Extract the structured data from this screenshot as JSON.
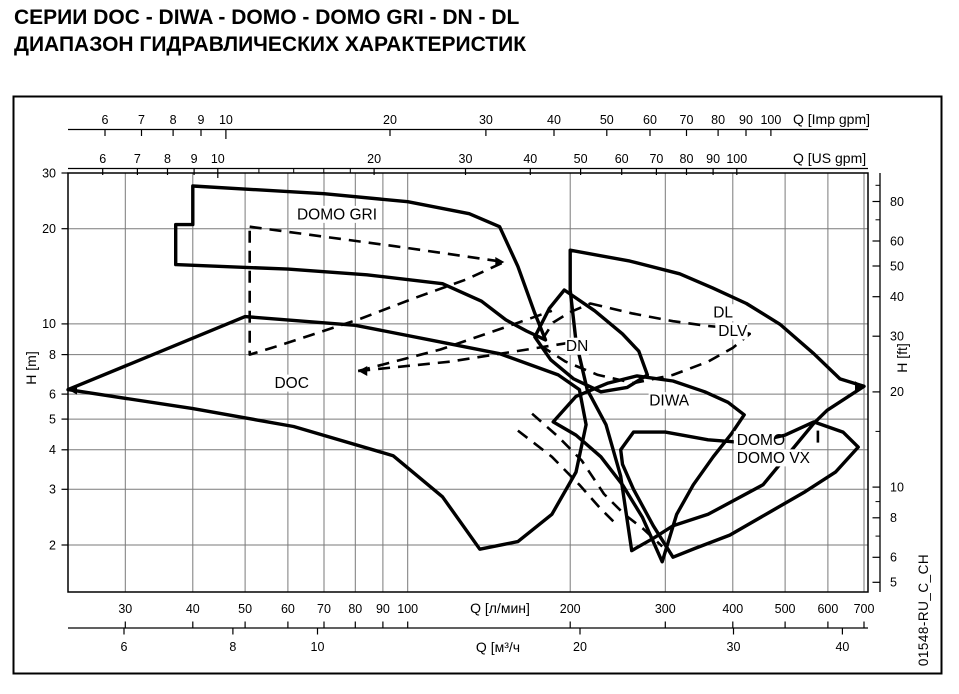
{
  "page": {
    "background": "#ffffff",
    "doc_code": "01548-RU_C_CH"
  },
  "title": {
    "line1": "СЕРИИ DOC - DIWA - DOMO - DOMO GRI - DN - DL",
    "line2": "ДИАПАЗОН ГИДРАВЛИЧЕСКИХ ХАРАКТЕРИСТИК"
  },
  "chart_data": {
    "type": "line",
    "description": "Log-log hydraulic range envelopes (flow Q vs head H) for pump series DOC, DIWA, DOMO, DOMO GRI, DN, DL",
    "grid": true,
    "x_range_lmin": [
      23.4,
      712
    ],
    "y_range_m": [
      1.42,
      30
    ],
    "x_axes": {
      "imp_gpm": {
        "label": "Q [Imp gpm]",
        "ticks": [
          6,
          7,
          8,
          9,
          10,
          20,
          30,
          40,
          50,
          60,
          70,
          80,
          90,
          100
        ]
      },
      "us_gpm": {
        "label": "Q [US gpm]",
        "ticks": [
          6,
          7,
          8,
          9,
          10,
          20,
          30,
          40,
          50,
          60,
          70,
          80,
          90,
          100
        ],
        "minor_ticks": [
          12,
          14,
          16,
          18
        ]
      },
      "l_min": {
        "label": "Q [л/мин]",
        "ticks": [
          30,
          40,
          50,
          60,
          70,
          80,
          90,
          100,
          200,
          300,
          400,
          500,
          600,
          700
        ]
      },
      "m3_h": {
        "label": "Q [м³/ч",
        "ticks": [
          6,
          8,
          10,
          20,
          30,
          40
        ]
      }
    },
    "y_axes": {
      "m": {
        "label": "H [m]",
        "ticks": [
          30,
          20,
          10,
          8,
          6,
          5,
          4,
          3,
          2
        ]
      },
      "ft": {
        "label": "H [ft]",
        "ticks": [
          80,
          60,
          50,
          40,
          30,
          20,
          10,
          8,
          6,
          5
        ],
        "minor_ticks": [
          90,
          70,
          15,
          9,
          7
        ]
      }
    },
    "series": [
      {
        "name": "DOC",
        "style": "solid",
        "closed": true,
        "points": [
          [
            23.5,
            6.2
          ],
          [
            50,
            10.55
          ],
          [
            80,
            9.9
          ],
          [
            110,
            8.9
          ],
          [
            148,
            8.05
          ],
          [
            190,
            6.9
          ],
          [
            208,
            6.2
          ],
          [
            214,
            4.8
          ],
          [
            205,
            3.4
          ],
          [
            185,
            2.5
          ],
          [
            160,
            2.05
          ],
          [
            136,
            1.94
          ],
          [
            116,
            2.84
          ],
          [
            94,
            3.83
          ],
          [
            61.5,
            4.74
          ],
          [
            40,
            5.4
          ]
        ]
      },
      {
        "name": "DOMO GRI",
        "style": "solid",
        "closed": true,
        "points": [
          [
            40,
            27.3
          ],
          [
            70,
            25.8
          ],
          [
            100,
            24.35
          ],
          [
            130,
            22.3
          ],
          [
            148,
            20.3
          ],
          [
            160,
            15.2
          ],
          [
            172,
            10.8
          ],
          [
            180,
            8.9
          ],
          [
            166,
            9.5
          ],
          [
            152,
            10.3
          ],
          [
            137,
            11.8
          ],
          [
            116,
            13.4
          ],
          [
            84,
            14.3
          ],
          [
            60,
            14.9
          ],
          [
            37.2,
            15.4
          ],
          [
            37.2,
            20.6
          ],
          [
            40,
            20.6
          ]
        ]
      },
      {
        "name": "DN",
        "style": "solid",
        "closed": true,
        "points": [
          [
            195,
            12.8
          ],
          [
            222,
            11.0
          ],
          [
            250,
            9.3
          ],
          [
            268,
            8.2
          ],
          [
            278,
            6.9
          ],
          [
            255,
            6.3
          ],
          [
            228,
            6.1
          ],
          [
            203,
            6.7
          ],
          [
            184,
            7.7
          ],
          [
            172,
            9.1
          ],
          [
            183,
            11.2
          ]
        ]
      },
      {
        "name": "DL DLV",
        "style": "solid",
        "closed": true,
        "points": [
          [
            200,
            17.1
          ],
          [
            200,
            12.8
          ],
          [
            205,
            8.8
          ],
          [
            215,
            6.2
          ],
          [
            233,
            4.8
          ],
          [
            248,
            3.3
          ],
          [
            260,
            1.92
          ],
          [
            285,
            2.1
          ],
          [
            310,
            2.3
          ],
          [
            360,
            2.5
          ],
          [
            455,
            3.1
          ],
          [
            565,
            4.85
          ],
          [
            598,
            5.33
          ],
          [
            700,
            6.35
          ],
          [
            632,
            6.7
          ],
          [
            565,
            8.05
          ],
          [
            490,
            9.95
          ],
          [
            424,
            11.6
          ],
          [
            367,
            13.0
          ],
          [
            319,
            14.4
          ],
          [
            258,
            15.8
          ]
        ]
      },
      {
        "name": "DIWA",
        "style": "solid",
        "closed": true,
        "points": [
          [
            186,
            4.9
          ],
          [
            205,
            5.9
          ],
          [
            235,
            6.5
          ],
          [
            266,
            6.85
          ],
          [
            310,
            6.6
          ],
          [
            355,
            6.1
          ],
          [
            392,
            5.65
          ],
          [
            420,
            5.16
          ],
          [
            398,
            4.5
          ],
          [
            368,
            3.8
          ],
          [
            338,
            3.1
          ],
          [
            315,
            2.5
          ],
          [
            296,
            1.77
          ],
          [
            272,
            2.45
          ],
          [
            250,
            3.1
          ],
          [
            228,
            3.8
          ],
          [
            205,
            4.45
          ]
        ]
      },
      {
        "name": "DOMO DOMO VX",
        "style": "solid",
        "closed": true,
        "points": [
          [
            248,
            4.0
          ],
          [
            262,
            4.55
          ],
          [
            300,
            4.55
          ],
          [
            360,
            4.3
          ],
          [
            430,
            4.2
          ],
          [
            500,
            4.45
          ],
          [
            565,
            4.9
          ],
          [
            640,
            4.55
          ],
          [
            683,
            4.08
          ],
          [
            620,
            3.4
          ],
          [
            545,
            2.95
          ],
          [
            470,
            2.55
          ],
          [
            395,
            2.15
          ],
          [
            340,
            1.95
          ],
          [
            310,
            1.83
          ],
          [
            285,
            2.3
          ],
          [
            262,
            3.0
          ],
          [
            250,
            3.6
          ]
        ]
      },
      {
        "name": "dashed-envelope-gri",
        "style": "dashed",
        "closed": true,
        "points": [
          [
            51,
            20.3
          ],
          [
            95,
            17.6
          ],
          [
            151,
            15.7
          ],
          [
            128,
            13.8
          ],
          [
            102,
            12.0
          ],
          [
            82,
            10.4
          ],
          [
            66,
            9.2
          ],
          [
            56,
            8.4
          ],
          [
            51,
            8.0
          ]
        ]
      },
      {
        "name": "dashed-envelope-dn",
        "style": "dashed",
        "closed": true,
        "points": [
          [
            218,
            11.6
          ],
          [
            260,
            10.8
          ],
          [
            310,
            10.2
          ],
          [
            360,
            9.85
          ],
          [
            400,
            9.7
          ],
          [
            430,
            9.3
          ],
          [
            400,
            8.4
          ],
          [
            360,
            7.6
          ],
          [
            310,
            6.9
          ],
          [
            262,
            6.5
          ],
          [
            225,
            6.9
          ],
          [
            196,
            7.6
          ],
          [
            175,
            8.6
          ],
          [
            186,
            10.1
          ],
          [
            200,
            10.9
          ]
        ]
      },
      {
        "name": "dashed-curve-1",
        "style": "dashed",
        "closed": false,
        "points": [
          [
            170,
            5.2
          ],
          [
            190,
            4.4
          ],
          [
            210,
            3.7
          ],
          [
            231,
            2.9
          ],
          [
            252,
            2.5
          ],
          [
            273,
            2.25
          ],
          [
            296,
            1.98
          ]
        ]
      },
      {
        "name": "dashed-curve-2",
        "style": "dashed",
        "closed": false,
        "points": [
          [
            81,
            7.1
          ],
          [
            115,
            8.3
          ],
          [
            150,
            9.7
          ],
          [
            185,
            11.0
          ]
        ]
      },
      {
        "name": "dashed-curve-3",
        "style": "dashed",
        "closed": false,
        "points": [
          [
            81,
            7.1
          ],
          [
            120,
            7.6
          ],
          [
            170,
            8.35
          ],
          [
            215,
            8.9
          ]
        ]
      },
      {
        "name": "dashed-curve-4",
        "style": "dashed",
        "closed": false,
        "points": [
          [
            160,
            4.6
          ],
          [
            185,
            3.8
          ],
          [
            208,
            3.1
          ],
          [
            228,
            2.6
          ],
          [
            245,
            2.3
          ]
        ]
      },
      {
        "name": "dashed-curve-5",
        "style": "dashed",
        "closed": false,
        "points": [
          [
            575,
            4.6
          ],
          [
            575,
            4.05
          ]
        ]
      }
    ],
    "region_labels": [
      {
        "text": "DOMO GRI",
        "q": 74,
        "h": 22.2,
        "anchor": "middle"
      },
      {
        "text": "DOC",
        "q": 61,
        "h": 6.5,
        "anchor": "middle"
      },
      {
        "text": "DN",
        "q": 206,
        "h": 8.5,
        "anchor": "middle"
      },
      {
        "text": "DL",
        "q": 368,
        "h": 10.85,
        "anchor": "start"
      },
      {
        "text": "DLV",
        "q": 376,
        "h": 9.5,
        "anchor": "start"
      },
      {
        "text": "DIWA",
        "q": 305,
        "h": 5.72,
        "anchor": "middle"
      },
      {
        "text": "DOMO",
        "q": 407,
        "h": 4.3,
        "anchor": "start"
      },
      {
        "text": "DOMO VX",
        "q": 407,
        "h": 3.77,
        "anchor": "start"
      }
    ],
    "arrows": [
      {
        "q": 23.5,
        "h": 6.2,
        "dir": "left"
      },
      {
        "q": 700,
        "h": 6.35,
        "dir": "right"
      },
      {
        "q": 81,
        "h": 7.1,
        "dir": "left"
      },
      {
        "q": 151,
        "h": 15.7,
        "dir": "right"
      }
    ],
    "colors": {
      "curve": "#000000",
      "grid": "#7a7a7a",
      "text": "#000000",
      "frame": "#000000",
      "background": "#ffffff"
    }
  }
}
